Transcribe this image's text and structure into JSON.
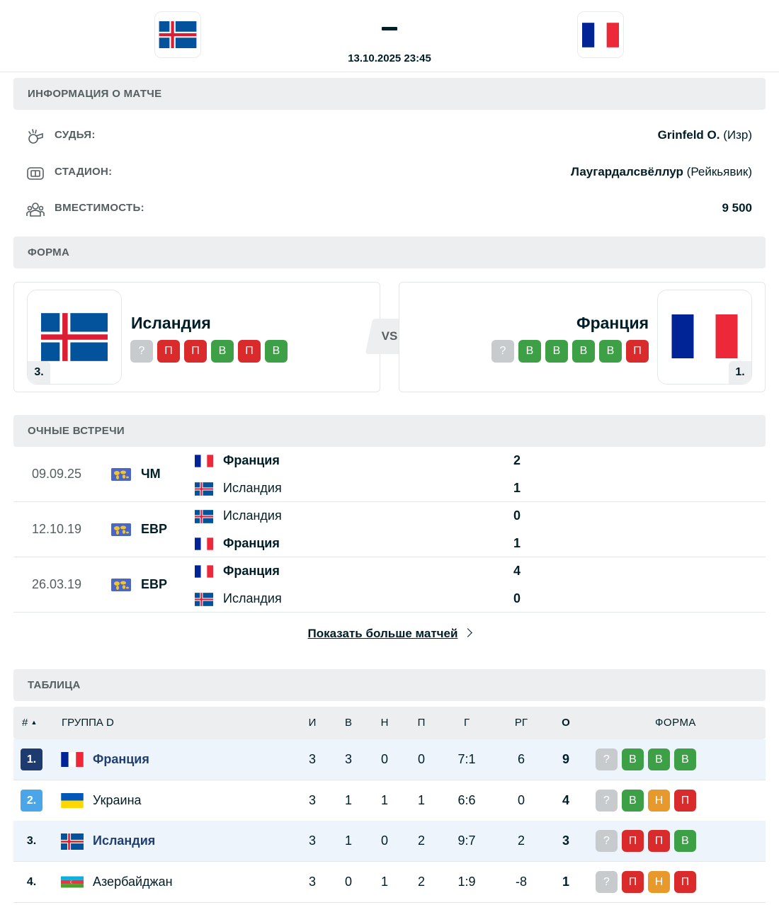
{
  "header": {
    "home_team": "Исландия",
    "away_team": "Франция",
    "date_time": "13.10.2025 23:45"
  },
  "sections": {
    "match_info": "ИНФОРМАЦИЯ О МАТЧЕ",
    "form": "ФОРМА",
    "h2h": "ОЧНЫЕ ВСТРЕЧИ",
    "table": "ТАБЛИЦА"
  },
  "match_info": {
    "referee_label": "СУДЬЯ:",
    "referee_name": "Grinfeld O.",
    "referee_country": " (Изр)",
    "stadium_label": "СТАДИОН:",
    "stadium_name": "Лаугардалсвёллур",
    "stadium_city": " (Рейкьявик)",
    "capacity_label": "ВМЕСТИМОСТЬ:",
    "capacity_value": "9 500"
  },
  "form": {
    "home": {
      "name": "Исландия",
      "rank": "3.",
      "results": [
        "?",
        "П",
        "П",
        "В",
        "П",
        "В"
      ]
    },
    "vs": "VS",
    "away": {
      "name": "Франция",
      "rank": "1.",
      "results": [
        "?",
        "В",
        "В",
        "В",
        "В",
        "П"
      ]
    }
  },
  "h2h": [
    {
      "date": "09.09.25",
      "competition": "ЧМ",
      "team1": "Франция",
      "score1": "2",
      "team1_flag": "fr",
      "team1_win": true,
      "team2": "Исландия",
      "score2": "1",
      "team2_flag": "is",
      "team2_win": false
    },
    {
      "date": "12.10.19",
      "competition": "ЕВР",
      "team1": "Исландия",
      "score1": "0",
      "team1_flag": "is",
      "team1_win": false,
      "team2": "Франция",
      "score2": "1",
      "team2_flag": "fr",
      "team2_win": true
    },
    {
      "date": "26.03.19",
      "competition": "ЕВР",
      "team1": "Франция",
      "score1": "4",
      "team1_flag": "fr",
      "team1_win": true,
      "team2": "Исландия",
      "score2": "0",
      "team2_flag": "is",
      "team2_win": false
    }
  ],
  "more_matches": "Показать больше матчей",
  "table": {
    "headers": {
      "rank": "#",
      "group": "ГРУППА D",
      "played": "И",
      "won": "В",
      "draw": "Н",
      "lost": "П",
      "goals": "Г",
      "diff": "РГ",
      "points": "О",
      "form": "ФОРМА"
    },
    "rows": [
      {
        "rank": "1.",
        "team": "Франция",
        "flag": "fr",
        "played": "3",
        "won": "3",
        "draw": "0",
        "lost": "0",
        "goals": "7:1",
        "diff": "6",
        "points": "9",
        "form": [
          "?",
          "В",
          "В",
          "В"
        ],
        "highlight": true
      },
      {
        "rank": "2.",
        "team": "Украина",
        "flag": "ua",
        "played": "3",
        "won": "1",
        "draw": "1",
        "lost": "1",
        "goals": "6:6",
        "diff": "0",
        "points": "4",
        "form": [
          "?",
          "В",
          "Н",
          "П"
        ],
        "highlight": false
      },
      {
        "rank": "3.",
        "team": "Исландия",
        "flag": "is",
        "played": "3",
        "won": "1",
        "draw": "0",
        "lost": "2",
        "goals": "9:7",
        "diff": "2",
        "points": "3",
        "form": [
          "?",
          "П",
          "П",
          "В"
        ],
        "highlight": true
      },
      {
        "rank": "4.",
        "team": "Азербайджан",
        "flag": "az",
        "played": "3",
        "won": "0",
        "draw": "1",
        "lost": "2",
        "goals": "1:9",
        "diff": "-8",
        "points": "1",
        "form": [
          "?",
          "П",
          "Н",
          "П"
        ],
        "highlight": false
      }
    ]
  }
}
